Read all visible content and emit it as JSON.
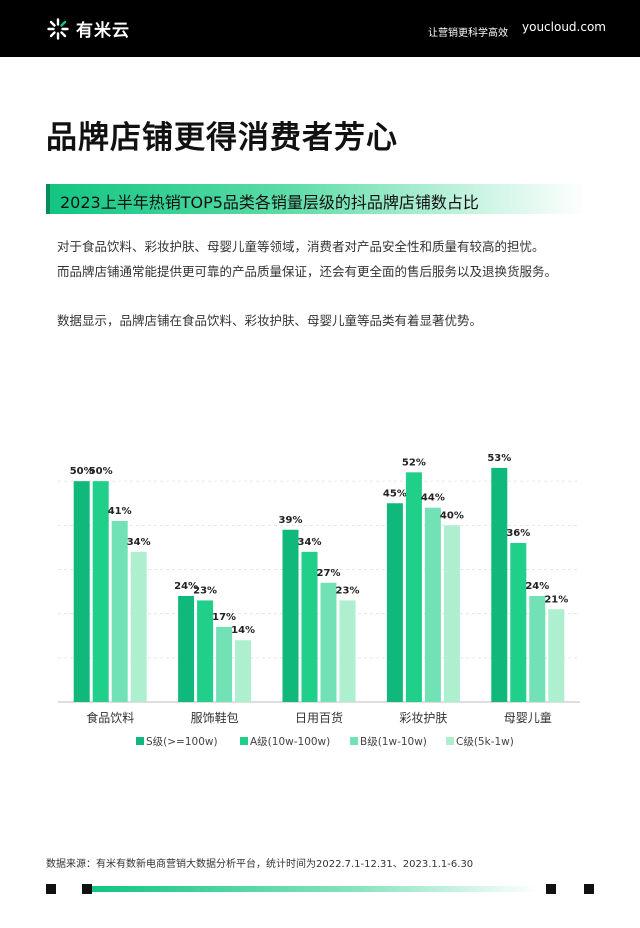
{
  "header": {
    "logo_text": "有米云",
    "slogan": "让营销更科学高效",
    "domain": "youcloud.com"
  },
  "page_title": "品牌店铺更得消费者芳心",
  "subtitle": "2023上半年热销TOP5品类各销量层级的抖品牌店铺数占比",
  "paragraphs": [
    "对于食品饮料、彩妆护肤、母婴儿童等领域，消费者对产品安全性和质量有较高的担忧。",
    "而品牌店铺通常能提供更可靠的产品质量保证，还会有更全面的售后服务以及退换货服务。",
    "数据显示，品牌店铺在食品饮料、彩妆护肤、母婴儿童等品类有着显著优势。"
  ],
  "colors": {
    "brand": "#11c581",
    "series": [
      "#10b97b",
      "#1fcf8a",
      "#72e2b6",
      "#aeefd0"
    ]
  },
  "chart_data": {
    "type": "bar",
    "categories": [
      "食品饮料",
      "服饰鞋包",
      "日用百货",
      "彩妆护肤",
      "母婴儿童"
    ],
    "series": [
      {
        "name": "S级(>=100w)",
        "values": [
          50,
          24,
          39,
          45,
          53
        ]
      },
      {
        "name": "A级(10w-100w)",
        "values": [
          50,
          23,
          34,
          52,
          36
        ]
      },
      {
        "name": "B级(1w-10w)",
        "values": [
          41,
          17,
          27,
          44,
          24
        ]
      },
      {
        "name": "C级(5k-1w)",
        "values": [
          34,
          14,
          23,
          40,
          21
        ]
      }
    ],
    "value_suffix": "%",
    "ylim": [
      0,
      60
    ],
    "grid": true,
    "legend_position": "bottom"
  },
  "source": "数据来源：有米有数新电商营销大数据分析平台，统计时间为2022.7.1-12.31、2023.1.1-6.30"
}
